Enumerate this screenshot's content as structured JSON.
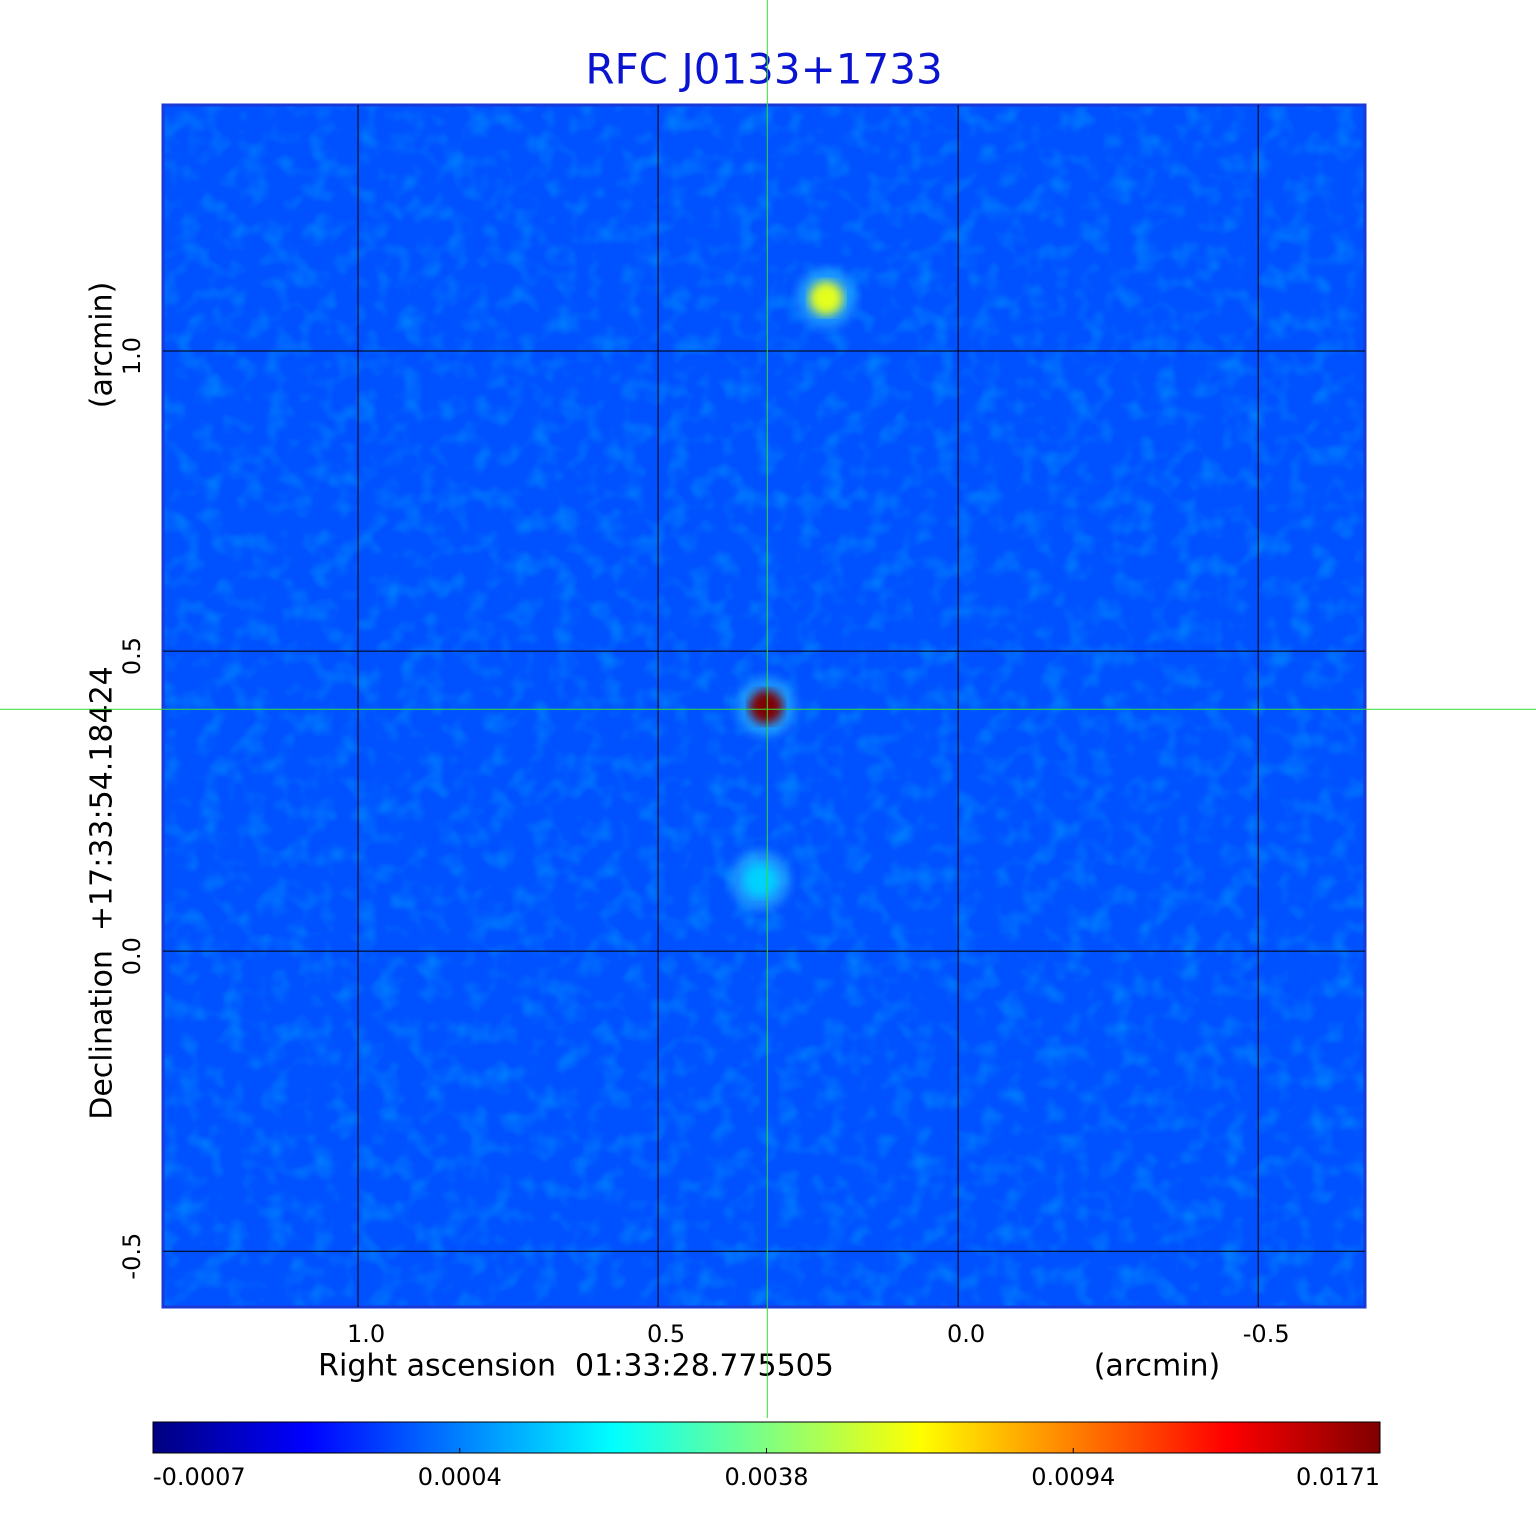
{
  "chart_data": {
    "type": "image",
    "title": "RFC J0133+1733",
    "x_label": "Right ascension  01:33:28.775505",
    "x_unit": "(arcmin)",
    "y_label": "Declination  +17:33:54.18424",
    "y_unit": "(arcmin)",
    "xlim": [
      1.325,
      -0.678
    ],
    "ylim": [
      -0.593,
      1.41
    ],
    "xticks": [
      {
        "value": 1,
        "label": "1.0"
      },
      0.5,
      {
        "value": 0,
        "label": "0.0"
      },
      -0.5
    ],
    "yticks": [
      {
        "value": 1,
        "label": "1.0"
      },
      0.5,
      {
        "value": 0,
        "label": "0.0"
      },
      -0.5
    ],
    "grid": true,
    "background_level": 0.0002,
    "sources": [
      {
        "x": 0.32,
        "y": 0.407,
        "peak": 0.0171
      },
      {
        "x": 0.22,
        "y": 1.088,
        "peak": 0.006
      },
      {
        "x": 0.33,
        "y": 0.118,
        "peak": 0.0015
      }
    ],
    "crosshair": {
      "x": 0.318,
      "y": 0.403
    },
    "colorbar_ticks": [
      -0.0007,
      0.0004,
      0.0038,
      0.0094,
      0.0171
    ],
    "colormap": [
      "#000080",
      "#0000ff",
      "#0080ff",
      "#00ffff",
      "#80ff80",
      "#ffff00",
      "#ff8000",
      "#ff0000",
      "#800000"
    ],
    "title_color": "#0a14d0",
    "frame_color": "#1a3ad8",
    "crosshair_color": "#33dd33"
  }
}
